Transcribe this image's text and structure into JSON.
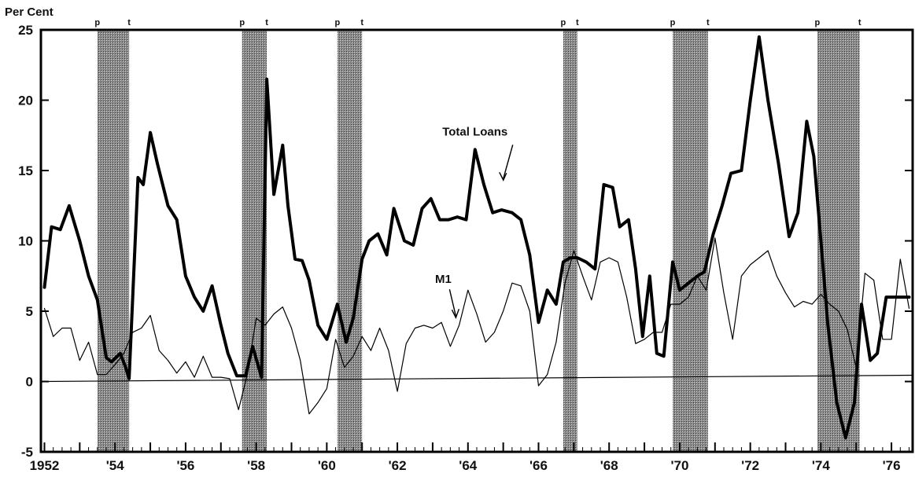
{
  "chart_data": {
    "type": "line",
    "title": "",
    "ylabel": "Per Cent",
    "xlabel": "",
    "xlim": [
      1951.9,
      1976.6
    ],
    "ylim": [
      -5,
      25
    ],
    "x_ticks": [
      {
        "value": 1952,
        "label": "1952"
      },
      {
        "value": 1954,
        "label": "'54"
      },
      {
        "value": 1956,
        "label": "'56"
      },
      {
        "value": 1958,
        "label": "'58"
      },
      {
        "value": 1960,
        "label": "'60"
      },
      {
        "value": 1962,
        "label": "'62"
      },
      {
        "value": 1964,
        "label": "'64"
      },
      {
        "value": 1966,
        "label": "'66"
      },
      {
        "value": 1968,
        "label": "'68"
      },
      {
        "value": 1970,
        "label": "'70"
      },
      {
        "value": 1972,
        "label": "'72"
      },
      {
        "value": 1974,
        "label": "'74"
      },
      {
        "value": 1976,
        "label": "'76"
      }
    ],
    "y_ticks": [
      {
        "value": 25,
        "label": "25"
      },
      {
        "value": 20,
        "label": "20"
      },
      {
        "value": 15,
        "label": "15"
      },
      {
        "value": 10,
        "label": "10"
      },
      {
        "value": 5,
        "label": "5"
      },
      {
        "value": 0,
        "label": "0"
      },
      {
        "value": -5,
        "label": "-5"
      }
    ],
    "grid": false,
    "recessions": [
      {
        "peak": 1953.5,
        "trough": 1954.4,
        "peak_label": "p",
        "trough_label": "t"
      },
      {
        "peak": 1957.6,
        "trough": 1958.3,
        "peak_label": "p",
        "trough_label": "t"
      },
      {
        "peak": 1960.3,
        "trough": 1961.0,
        "peak_label": "p",
        "trough_label": "t"
      },
      {
        "peak": 1966.7,
        "trough": 1967.1,
        "peak_label": "p",
        "trough_label": "t"
      },
      {
        "peak": 1969.8,
        "trough": 1970.8,
        "peak_label": "p",
        "trough_label": "t"
      },
      {
        "peak": 1973.9,
        "trough": 1975.1,
        "peak_label": "p",
        "trough_label": "t"
      }
    ],
    "series": [
      {
        "name": "Total Loans",
        "color": "#000000",
        "x": [
          1952.0,
          1952.2,
          1952.45,
          1952.7,
          1953.0,
          1953.25,
          1953.5,
          1953.75,
          1953.9,
          1954.15,
          1954.3,
          1954.4,
          1954.65,
          1954.8,
          1955.0,
          1955.2,
          1955.5,
          1955.75,
          1956.0,
          1956.25,
          1956.5,
          1956.75,
          1957.0,
          1957.2,
          1957.45,
          1957.7,
          1957.9,
          1958.15,
          1958.3,
          1958.5,
          1958.75,
          1958.9,
          1959.1,
          1959.3,
          1959.5,
          1959.75,
          1960.0,
          1960.3,
          1960.55,
          1960.75,
          1961.0,
          1961.2,
          1961.45,
          1961.7,
          1961.9,
          1962.2,
          1962.45,
          1962.7,
          1962.95,
          1963.2,
          1963.45,
          1963.7,
          1963.95,
          1964.2,
          1964.45,
          1964.7,
          1964.95,
          1965.25,
          1965.5,
          1965.75,
          1966.0,
          1966.25,
          1966.5,
          1966.7,
          1966.9,
          1967.1,
          1967.35,
          1967.6,
          1967.85,
          1968.1,
          1968.3,
          1968.55,
          1968.75,
          1968.95,
          1969.15,
          1969.35,
          1969.55,
          1969.8,
          1970.0,
          1970.25,
          1970.5,
          1970.7,
          1970.95,
          1971.2,
          1971.45,
          1971.75,
          1972.0,
          1972.25,
          1972.5,
          1972.8,
          1973.1,
          1973.35,
          1973.6,
          1973.8,
          1974.0,
          1974.2,
          1974.45,
          1974.7,
          1974.95,
          1975.15,
          1975.4,
          1975.6,
          1975.85,
          1976.1,
          1976.3,
          1976.5
        ],
        "values": [
          6.7,
          11.0,
          10.8,
          12.5,
          10.0,
          7.5,
          5.8,
          1.7,
          1.4,
          2.0,
          1.0,
          0.2,
          14.5,
          14.0,
          17.7,
          15.5,
          12.5,
          11.5,
          7.5,
          6.0,
          5.0,
          6.8,
          4.0,
          2.0,
          0.4,
          0.4,
          2.5,
          0.3,
          21.5,
          13.3,
          16.8,
          12.5,
          8.7,
          8.6,
          7.2,
          4.0,
          3.0,
          5.5,
          2.8,
          4.5,
          8.7,
          10.0,
          10.5,
          9.0,
          12.3,
          10.0,
          9.7,
          12.3,
          13.0,
          11.5,
          11.5,
          11.7,
          11.5,
          16.5,
          14.0,
          12.0,
          12.2,
          12.0,
          11.5,
          9.0,
          4.2,
          6.5,
          5.5,
          8.5,
          8.8,
          8.8,
          8.5,
          8.0,
          14.0,
          13.8,
          11.0,
          11.5,
          8.0,
          3.2,
          7.5,
          2.0,
          1.8,
          8.5,
          6.5,
          7.0,
          7.5,
          7.8,
          10.5,
          12.5,
          14.8,
          15.0,
          20.0,
          24.5,
          20.0,
          15.5,
          10.3,
          12.0,
          18.5,
          16.0,
          10.0,
          4.0,
          -1.5,
          -4.0,
          -1.5,
          5.5,
          1.5,
          2.0,
          6.0,
          6.0,
          6.0,
          6.0
        ],
        "line_width": 4
      },
      {
        "name": "M1",
        "color": "#000000",
        "x": [
          1952.0,
          1952.25,
          1952.5,
          1952.75,
          1953.0,
          1953.25,
          1953.5,
          1953.75,
          1954.0,
          1954.25,
          1954.5,
          1954.75,
          1955.0,
          1955.25,
          1955.5,
          1955.75,
          1956.0,
          1956.25,
          1956.5,
          1956.75,
          1957.0,
          1957.25,
          1957.5,
          1957.75,
          1958.0,
          1958.25,
          1958.5,
          1958.75,
          1959.0,
          1959.25,
          1959.5,
          1959.75,
          1960.0,
          1960.25,
          1960.5,
          1960.75,
          1961.0,
          1961.25,
          1961.5,
          1961.75,
          1962.0,
          1962.25,
          1962.5,
          1962.75,
          1963.0,
          1963.25,
          1963.5,
          1963.75,
          1964.0,
          1964.25,
          1964.5,
          1964.75,
          1965.0,
          1965.25,
          1965.5,
          1965.75,
          1966.0,
          1966.25,
          1966.5,
          1966.75,
          1967.0,
          1967.25,
          1967.5,
          1967.75,
          1968.0,
          1968.25,
          1968.5,
          1968.75,
          1969.0,
          1969.25,
          1969.5,
          1969.75,
          1970.0,
          1970.25,
          1970.5,
          1970.75,
          1971.0,
          1971.25,
          1971.5,
          1971.75,
          1972.0,
          1972.25,
          1972.5,
          1972.75,
          1973.0,
          1973.25,
          1973.5,
          1973.75,
          1974.0,
          1974.25,
          1974.5,
          1974.75,
          1975.0,
          1975.25,
          1975.5,
          1975.75,
          1976.0,
          1976.25,
          1976.5
        ],
        "values": [
          5.2,
          3.2,
          3.8,
          3.8,
          1.5,
          2.8,
          0.5,
          0.5,
          1.2,
          2.0,
          3.5,
          3.8,
          4.7,
          2.2,
          1.5,
          0.6,
          1.4,
          0.3,
          1.8,
          0.3,
          0.3,
          0.2,
          -2.0,
          0.5,
          4.5,
          4.0,
          4.8,
          5.3,
          3.8,
          1.5,
          -2.3,
          -1.5,
          -0.5,
          3.0,
          1.0,
          1.8,
          3.2,
          2.2,
          3.8,
          2.2,
          -0.7,
          2.7,
          3.8,
          4.0,
          3.8,
          4.2,
          2.5,
          4.0,
          6.5,
          4.8,
          2.8,
          3.5,
          5.0,
          7.0,
          6.8,
          5.0,
          -0.3,
          0.5,
          2.8,
          7.0,
          9.3,
          7.5,
          5.8,
          8.5,
          8.8,
          8.5,
          6.0,
          2.7,
          3.0,
          3.5,
          3.5,
          5.5,
          5.5,
          6.0,
          7.5,
          6.5,
          10.2,
          6.3,
          3.0,
          7.5,
          8.3,
          8.8,
          9.3,
          7.5,
          6.3,
          5.3,
          5.7,
          5.5,
          6.2,
          5.5,
          5.0,
          3.7,
          1.0,
          7.7,
          7.2,
          3.0,
          3.0,
          8.7,
          5.2
        ],
        "line_width": 1.2
      }
    ],
    "annotations": [
      {
        "text": "Total Loans",
        "x": 1964.2,
        "y": 17.5
      },
      {
        "text": "M1",
        "x": 1963.3,
        "y": 7.0
      }
    ]
  }
}
